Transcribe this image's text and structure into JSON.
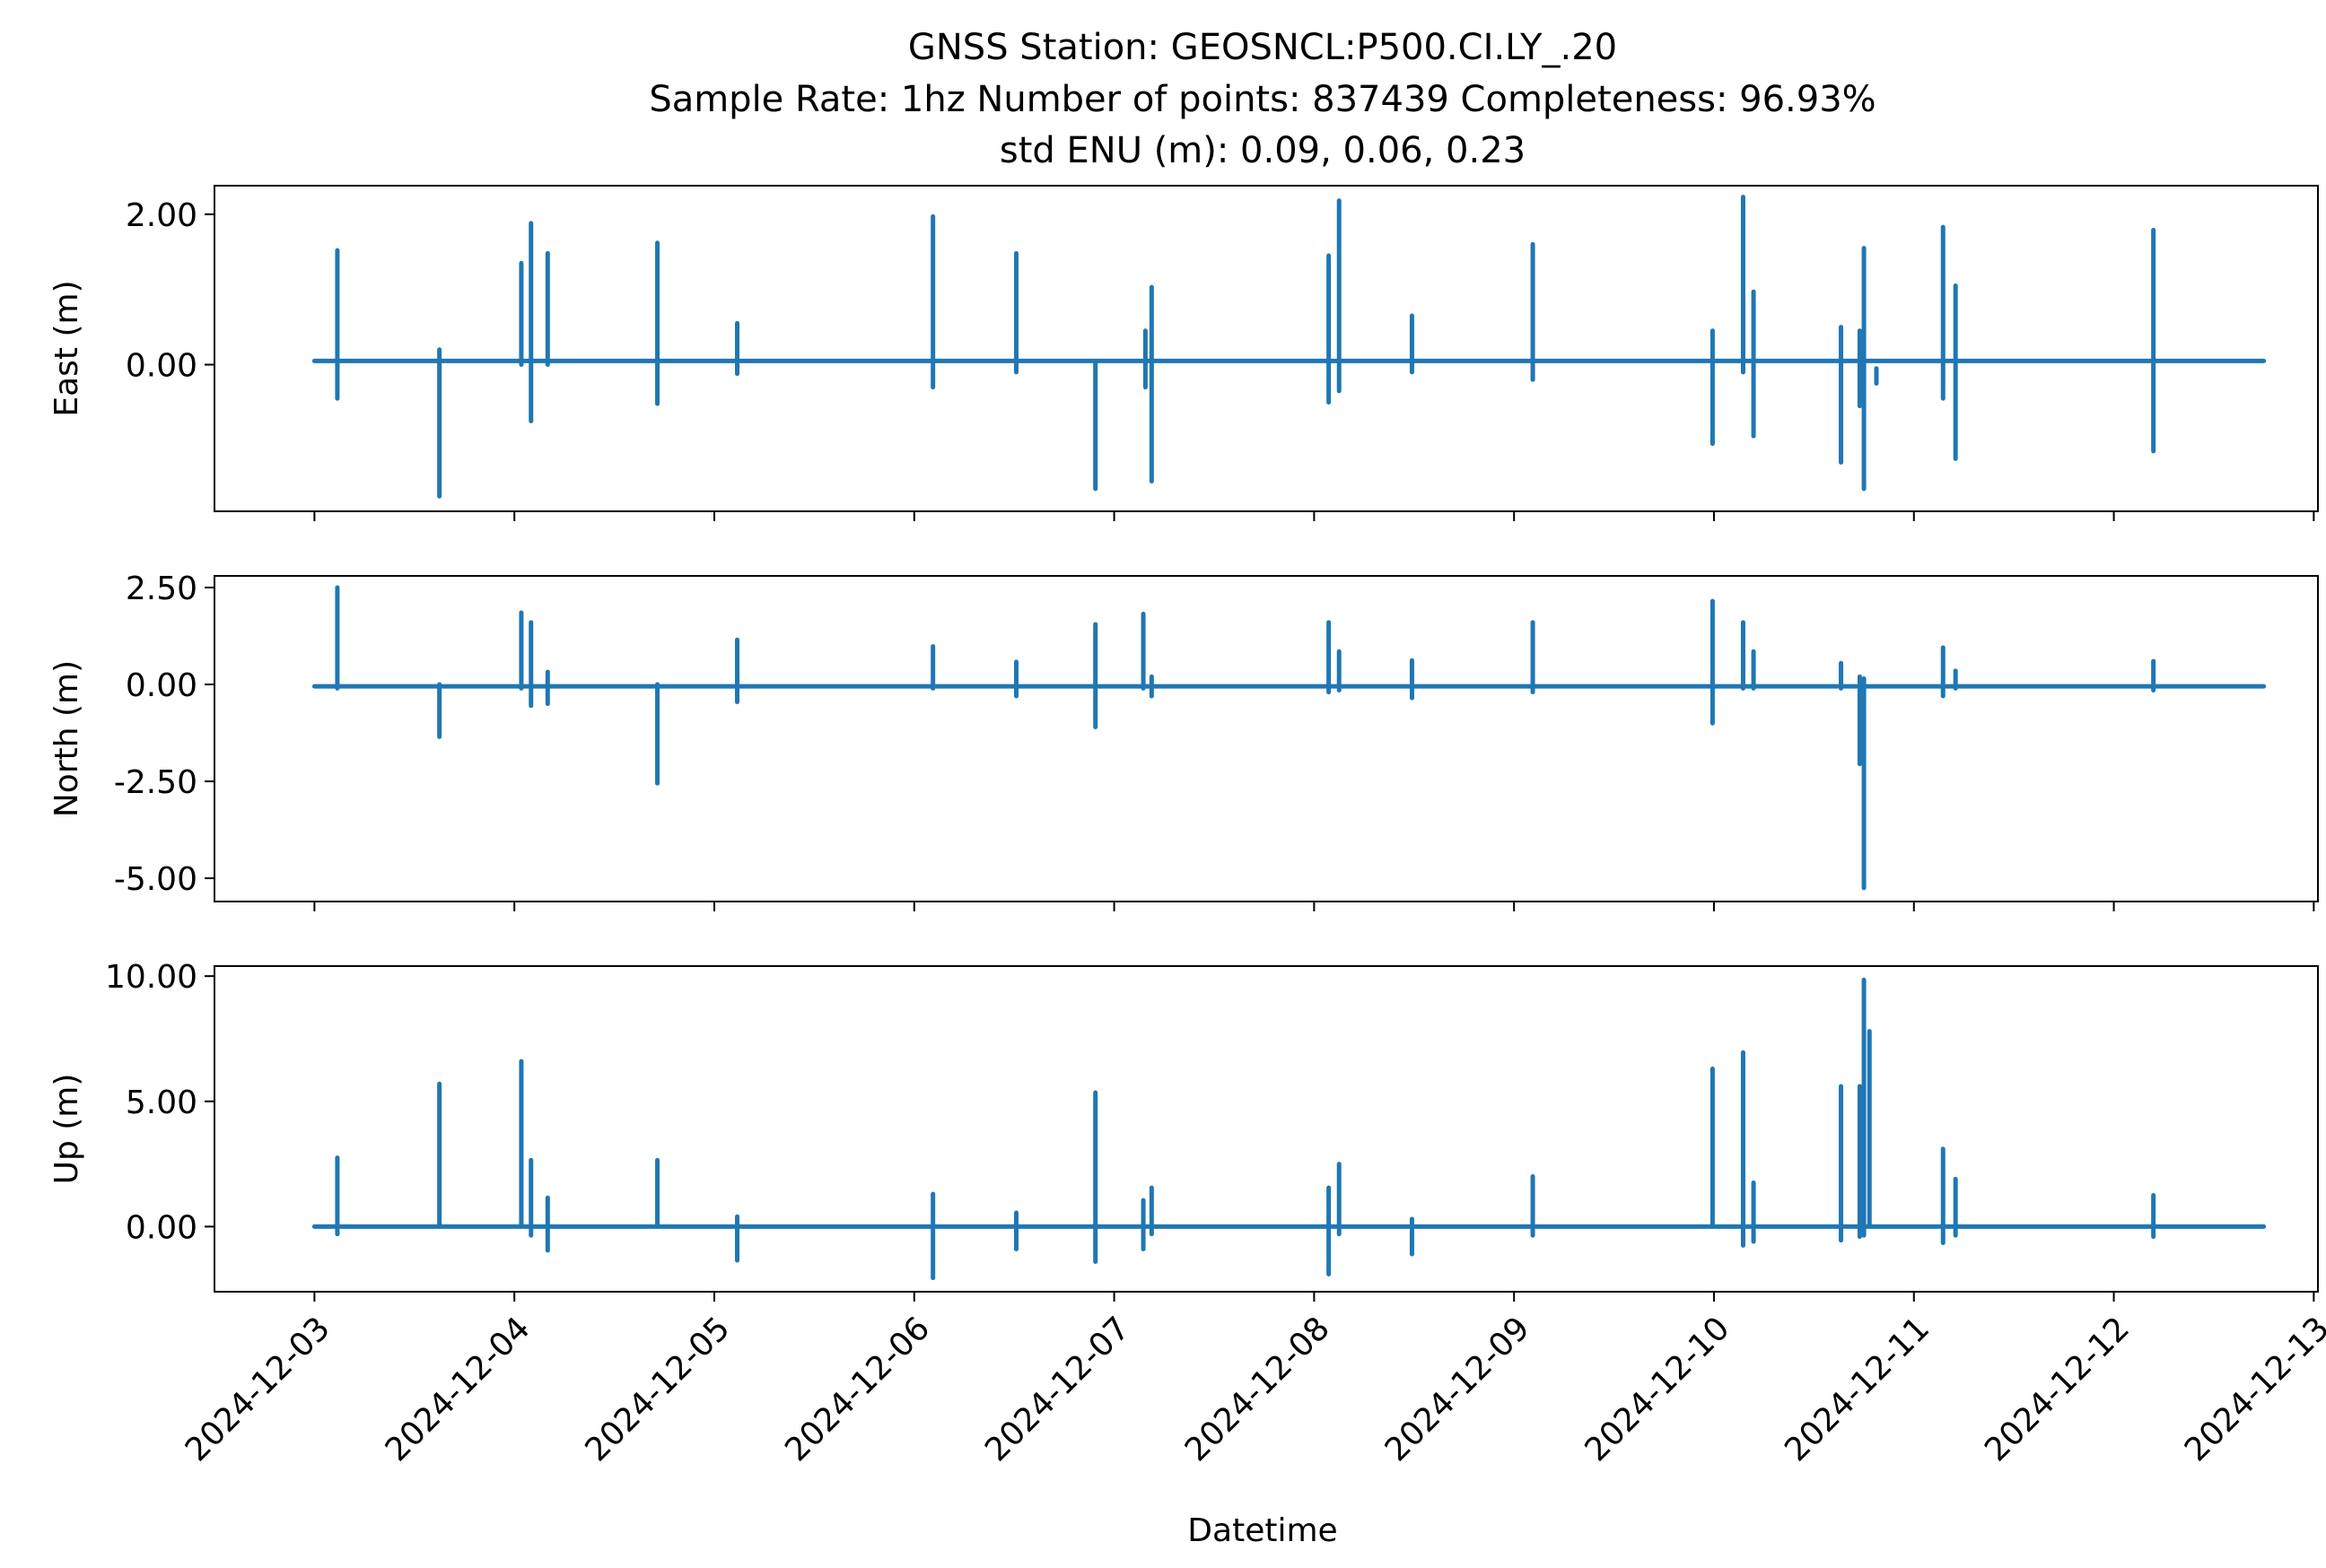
{
  "title": {
    "line1": "GNSS Station: GEOSNCL:P500.CI.LY_.20",
    "line2": "Sample Rate: 1hz   Number of points: 837439    Completeness:  96.93%",
    "line3": "std ENU (m):  0.09, 0.06, 0.23"
  },
  "chart_data": [
    {
      "type": "line",
      "ylabel": "East (m)",
      "xlabel": "",
      "color": "#1f77b4",
      "xlim": [
        "2024-12-02T12:00",
        "2024-12-13T00:30"
      ],
      "ylim": [
        -1.95,
        2.38
      ],
      "yticks": [
        0.0,
        2.0
      ],
      "ytick_labels": [
        "0.00",
        "2.00"
      ],
      "baseline": 0.05,
      "data_start": "2024-12-03T00:00",
      "data_end": "2024-12-12T18:00",
      "spikes": [
        {
          "t": "2024-12-03T02:45",
          "max": 1.52,
          "min": -0.45
        },
        {
          "t": "2024-12-03T15:00",
          "max": 0.2,
          "min": -1.75
        },
        {
          "t": "2024-12-04T00:50",
          "max": 1.35,
          "min": 0.0
        },
        {
          "t": "2024-12-04T02:00",
          "max": 1.88,
          "min": -0.75
        },
        {
          "t": "2024-12-04T04:00",
          "max": 1.48,
          "min": 0.0
        },
        {
          "t": "2024-12-04T17:10",
          "max": 1.62,
          "min": -0.52
        },
        {
          "t": "2024-12-05T02:45",
          "max": 0.55,
          "min": -0.12
        },
        {
          "t": "2024-12-06T02:15",
          "max": 1.97,
          "min": -0.3
        },
        {
          "t": "2024-12-06T12:15",
          "max": 1.48,
          "min": -0.1
        },
        {
          "t": "2024-12-06T21:45",
          "max": 0.05,
          "min": -1.65
        },
        {
          "t": "2024-12-07T03:45",
          "max": 0.45,
          "min": -0.3
        },
        {
          "t": "2024-12-07T04:30",
          "max": 1.03,
          "min": -1.55
        },
        {
          "t": "2024-12-08T01:45",
          "max": 1.45,
          "min": -0.5
        },
        {
          "t": "2024-12-08T03:00",
          "max": 2.18,
          "min": -0.35
        },
        {
          "t": "2024-12-08T11:45",
          "max": 0.65,
          "min": -0.1
        },
        {
          "t": "2024-12-09T02:15",
          "max": 1.6,
          "min": -0.2
        },
        {
          "t": "2024-12-09T23:50",
          "max": 0.45,
          "min": -1.05
        },
        {
          "t": "2024-12-10T03:30",
          "max": 2.23,
          "min": -0.1
        },
        {
          "t": "2024-12-10T04:45",
          "max": 0.97,
          "min": -0.95
        },
        {
          "t": "2024-12-10T15:15",
          "max": 0.5,
          "min": -1.3
        },
        {
          "t": "2024-12-10T17:30",
          "max": 0.45,
          "min": -0.55
        },
        {
          "t": "2024-12-10T18:00",
          "max": 1.55,
          "min": -1.65
        },
        {
          "t": "2024-12-10T19:30",
          "max": -0.05,
          "min": -0.25
        },
        {
          "t": "2024-12-11T03:30",
          "max": 1.83,
          "min": -0.45
        },
        {
          "t": "2024-12-11T05:00",
          "max": 1.05,
          "min": -1.25
        },
        {
          "t": "2024-12-12T04:45",
          "max": 1.79,
          "min": -1.15
        }
      ]
    },
    {
      "type": "line",
      "ylabel": "North (m)",
      "xlabel": "",
      "color": "#1f77b4",
      "xlim": [
        "2024-12-02T12:00",
        "2024-12-13T00:30"
      ],
      "ylim": [
        -5.6,
        2.8
      ],
      "yticks": [
        -5.0,
        -2.5,
        0.0,
        2.5
      ],
      "ytick_labels": [
        "-5.00",
        "-2.50",
        "0.00",
        "2.50"
      ],
      "baseline": -0.05,
      "data_start": "2024-12-03T00:00",
      "data_end": "2024-12-12T18:00",
      "spikes": [
        {
          "t": "2024-12-03T02:45",
          "max": 2.5,
          "min": -0.1
        },
        {
          "t": "2024-12-03T15:00",
          "max": 0.0,
          "min": -1.35
        },
        {
          "t": "2024-12-04T00:50",
          "max": 1.85,
          "min": -0.1
        },
        {
          "t": "2024-12-04T02:00",
          "max": 1.6,
          "min": -0.55
        },
        {
          "t": "2024-12-04T04:00",
          "max": 0.32,
          "min": -0.5
        },
        {
          "t": "2024-12-04T17:10",
          "max": 0.0,
          "min": -2.55
        },
        {
          "t": "2024-12-05T02:45",
          "max": 1.15,
          "min": -0.45
        },
        {
          "t": "2024-12-06T02:15",
          "max": 0.98,
          "min": -0.1
        },
        {
          "t": "2024-12-06T12:15",
          "max": 0.58,
          "min": -0.3
        },
        {
          "t": "2024-12-06T21:45",
          "max": 1.55,
          "min": -1.1
        },
        {
          "t": "2024-12-07T03:30",
          "max": 1.82,
          "min": -0.1
        },
        {
          "t": "2024-12-07T04:30",
          "max": 0.2,
          "min": -0.3
        },
        {
          "t": "2024-12-08T01:45",
          "max": 1.6,
          "min": -0.2
        },
        {
          "t": "2024-12-08T03:00",
          "max": 0.85,
          "min": -0.15
        },
        {
          "t": "2024-12-08T11:45",
          "max": 0.62,
          "min": -0.35
        },
        {
          "t": "2024-12-09T02:15",
          "max": 1.6,
          "min": -0.2
        },
        {
          "t": "2024-12-09T23:50",
          "max": 2.15,
          "min": -1.0
        },
        {
          "t": "2024-12-10T03:30",
          "max": 1.6,
          "min": -0.1
        },
        {
          "t": "2024-12-10T04:45",
          "max": 0.85,
          "min": -0.1
        },
        {
          "t": "2024-12-10T15:15",
          "max": 0.55,
          "min": -0.1
        },
        {
          "t": "2024-12-10T17:30",
          "max": 0.2,
          "min": -2.05
        },
        {
          "t": "2024-12-10T18:00",
          "max": 0.15,
          "min": -5.25
        },
        {
          "t": "2024-12-11T03:30",
          "max": 0.95,
          "min": -0.3
        },
        {
          "t": "2024-12-11T05:00",
          "max": 0.35,
          "min": -0.1
        },
        {
          "t": "2024-12-12T04:45",
          "max": 0.6,
          "min": -0.15
        }
      ]
    },
    {
      "type": "line",
      "ylabel": "Up (m)",
      "xlabel": "Datetime",
      "color": "#1f77b4",
      "xlim": [
        "2024-12-02T12:00",
        "2024-12-13T00:30"
      ],
      "ylim": [
        -2.6,
        10.4
      ],
      "yticks": [
        0.0,
        5.0,
        10.0
      ],
      "ytick_labels": [
        "0.00",
        "5.00",
        "10.00"
      ],
      "xtick_labels": [
        "2024-12-03",
        "2024-12-04",
        "2024-12-05",
        "2024-12-06",
        "2024-12-07",
        "2024-12-08",
        "2024-12-09",
        "2024-12-10",
        "2024-12-11",
        "2024-12-12",
        "2024-12-13"
      ],
      "baseline": 0.0,
      "data_start": "2024-12-03T00:00",
      "data_end": "2024-12-12T18:00",
      "spikes": [
        {
          "t": "2024-12-03T02:45",
          "max": 2.75,
          "min": -0.3
        },
        {
          "t": "2024-12-03T15:00",
          "max": 5.7,
          "min": 0.0
        },
        {
          "t": "2024-12-04T00:50",
          "max": 6.6,
          "min": 0.0
        },
        {
          "t": "2024-12-04T02:00",
          "max": 2.65,
          "min": -0.35
        },
        {
          "t": "2024-12-04T04:00",
          "max": 1.15,
          "min": -0.95
        },
        {
          "t": "2024-12-04T17:10",
          "max": 2.65,
          "min": 0.0
        },
        {
          "t": "2024-12-05T02:45",
          "max": 0.4,
          "min": -1.35
        },
        {
          "t": "2024-12-06T02:15",
          "max": 1.3,
          "min": -2.05
        },
        {
          "t": "2024-12-06T12:15",
          "max": 0.55,
          "min": -0.9
        },
        {
          "t": "2024-12-06T21:45",
          "max": 5.35,
          "min": -1.4
        },
        {
          "t": "2024-12-07T03:30",
          "max": 1.05,
          "min": -0.9
        },
        {
          "t": "2024-12-07T04:30",
          "max": 1.55,
          "min": -0.3
        },
        {
          "t": "2024-12-08T01:45",
          "max": 1.55,
          "min": -1.9
        },
        {
          "t": "2024-12-08T03:00",
          "max": 2.5,
          "min": -0.3
        },
        {
          "t": "2024-12-08T11:45",
          "max": 0.3,
          "min": -1.1
        },
        {
          "t": "2024-12-09T02:15",
          "max": 2.0,
          "min": -0.35
        },
        {
          "t": "2024-12-09T23:50",
          "max": 6.3,
          "min": 0.0
        },
        {
          "t": "2024-12-10T03:30",
          "max": 6.95,
          "min": -0.75
        },
        {
          "t": "2024-12-10T04:45",
          "max": 1.75,
          "min": -0.6
        },
        {
          "t": "2024-12-10T15:15",
          "max": 5.6,
          "min": -0.55
        },
        {
          "t": "2024-12-10T17:30",
          "max": 5.6,
          "min": -0.4
        },
        {
          "t": "2024-12-10T18:00",
          "max": 9.85,
          "min": -0.35
        },
        {
          "t": "2024-12-10T18:40",
          "max": 7.8,
          "min": 0.0
        },
        {
          "t": "2024-12-11T03:30",
          "max": 3.1,
          "min": -0.65
        },
        {
          "t": "2024-12-11T05:00",
          "max": 1.9,
          "min": -0.35
        },
        {
          "t": "2024-12-12T04:45",
          "max": 1.25,
          "min": -0.4
        }
      ]
    }
  ]
}
